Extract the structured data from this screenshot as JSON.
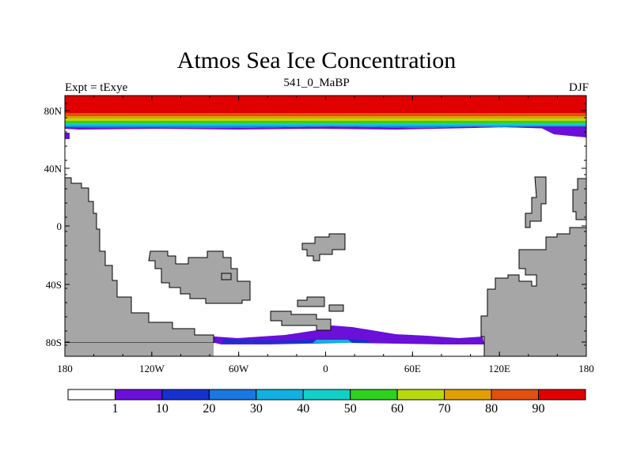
{
  "title": "Atmos Sea Ice Concentration",
  "subtitle_left": "Expt = tExye",
  "subtitle_center": "541_0_MaBP",
  "subtitle_right": "DJF",
  "y_ticks": [
    "80N",
    "40N",
    "0",
    "40S",
    "80S"
  ],
  "x_ticks": [
    "180",
    "120W",
    "60W",
    "0",
    "60E",
    "120E",
    "180"
  ],
  "colorbar": {
    "labels": [
      "1",
      "10",
      "20",
      "30",
      "40",
      "50",
      "60",
      "70",
      "80",
      "90"
    ],
    "colors": [
      "#ffffff",
      "#6a10d8",
      "#1630d0",
      "#1a78e0",
      "#10b0e0",
      "#10d0c8",
      "#30d020",
      "#b8d810",
      "#e0a000",
      "#e05010",
      "#e00000"
    ]
  },
  "colors": {
    "land": "#a6a6a6",
    "ocean": "#ffffff"
  }
}
